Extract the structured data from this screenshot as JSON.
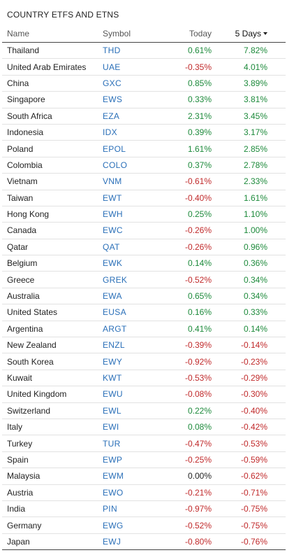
{
  "title": "COUNTRY ETFS AND ETNS",
  "columns": {
    "name": "Name",
    "symbol": "Symbol",
    "today": "Today",
    "five_days": "5 Days"
  },
  "sort": {
    "column": "five_days",
    "direction": "descending",
    "indicator_icon": "caret-down-icon"
  },
  "colors": {
    "positive": "#1d8a3b",
    "negative": "#c0292a",
    "link": "#2a6fb8"
  },
  "rows": [
    {
      "name": "Thailand",
      "symbol": "THD",
      "today": "0.61%",
      "five_days": "7.82%"
    },
    {
      "name": "United Arab Emirates",
      "symbol": "UAE",
      "today": "-0.35%",
      "five_days": "4.01%"
    },
    {
      "name": "China",
      "symbol": "GXC",
      "today": "0.85%",
      "five_days": "3.89%"
    },
    {
      "name": "Singapore",
      "symbol": "EWS",
      "today": "0.33%",
      "five_days": "3.81%"
    },
    {
      "name": "South Africa",
      "symbol": "EZA",
      "today": "2.31%",
      "five_days": "3.45%"
    },
    {
      "name": "Indonesia",
      "symbol": "IDX",
      "today": "0.39%",
      "five_days": "3.17%"
    },
    {
      "name": "Poland",
      "symbol": "EPOL",
      "today": "1.61%",
      "five_days": "2.85%"
    },
    {
      "name": "Colombia",
      "symbol": "COLO",
      "today": "0.37%",
      "five_days": "2.78%"
    },
    {
      "name": "Vietnam",
      "symbol": "VNM",
      "today": "-0.61%",
      "five_days": "2.33%"
    },
    {
      "name": "Taiwan",
      "symbol": "EWT",
      "today": "-0.40%",
      "five_days": "1.61%"
    },
    {
      "name": "Hong Kong",
      "symbol": "EWH",
      "today": "0.25%",
      "five_days": "1.10%"
    },
    {
      "name": "Canada",
      "symbol": "EWC",
      "today": "-0.26%",
      "five_days": "1.00%"
    },
    {
      "name": "Qatar",
      "symbol": "QAT",
      "today": "-0.26%",
      "five_days": "0.96%"
    },
    {
      "name": "Belgium",
      "symbol": "EWK",
      "today": "0.14%",
      "five_days": "0.36%"
    },
    {
      "name": "Greece",
      "symbol": "GREK",
      "today": "-0.52%",
      "five_days": "0.34%"
    },
    {
      "name": "Australia",
      "symbol": "EWA",
      "today": "0.65%",
      "five_days": "0.34%"
    },
    {
      "name": "United States",
      "symbol": "EUSA",
      "today": "0.16%",
      "five_days": "0.33%"
    },
    {
      "name": "Argentina",
      "symbol": "ARGT",
      "today": "0.41%",
      "five_days": "0.14%"
    },
    {
      "name": "New Zealand",
      "symbol": "ENZL",
      "today": "-0.39%",
      "five_days": "-0.14%"
    },
    {
      "name": "South Korea",
      "symbol": "EWY",
      "today": "-0.92%",
      "five_days": "-0.23%"
    },
    {
      "name": "Kuwait",
      "symbol": "KWT",
      "today": "-0.53%",
      "five_days": "-0.29%"
    },
    {
      "name": "United Kingdom",
      "symbol": "EWU",
      "today": "-0.08%",
      "five_days": "-0.30%"
    },
    {
      "name": "Switzerland",
      "symbol": "EWL",
      "today": "0.22%",
      "five_days": "-0.40%"
    },
    {
      "name": "Italy",
      "symbol": "EWI",
      "today": "0.08%",
      "five_days": "-0.42%"
    },
    {
      "name": "Turkey",
      "symbol": "TUR",
      "today": "-0.47%",
      "five_days": "-0.53%"
    },
    {
      "name": "Spain",
      "symbol": "EWP",
      "today": "-0.25%",
      "five_days": "-0.59%"
    },
    {
      "name": "Malaysia",
      "symbol": "EWM",
      "today": "0.00%",
      "five_days": "-0.62%"
    },
    {
      "name": "Austria",
      "symbol": "EWO",
      "today": "-0.21%",
      "five_days": "-0.71%"
    },
    {
      "name": "India",
      "symbol": "PIN",
      "today": "-0.97%",
      "five_days": "-0.75%"
    },
    {
      "name": "Germany",
      "symbol": "EWG",
      "today": "-0.52%",
      "five_days": "-0.75%"
    },
    {
      "name": "Japan",
      "symbol": "EWJ",
      "today": "-0.80%",
      "five_days": "-0.76%"
    }
  ]
}
